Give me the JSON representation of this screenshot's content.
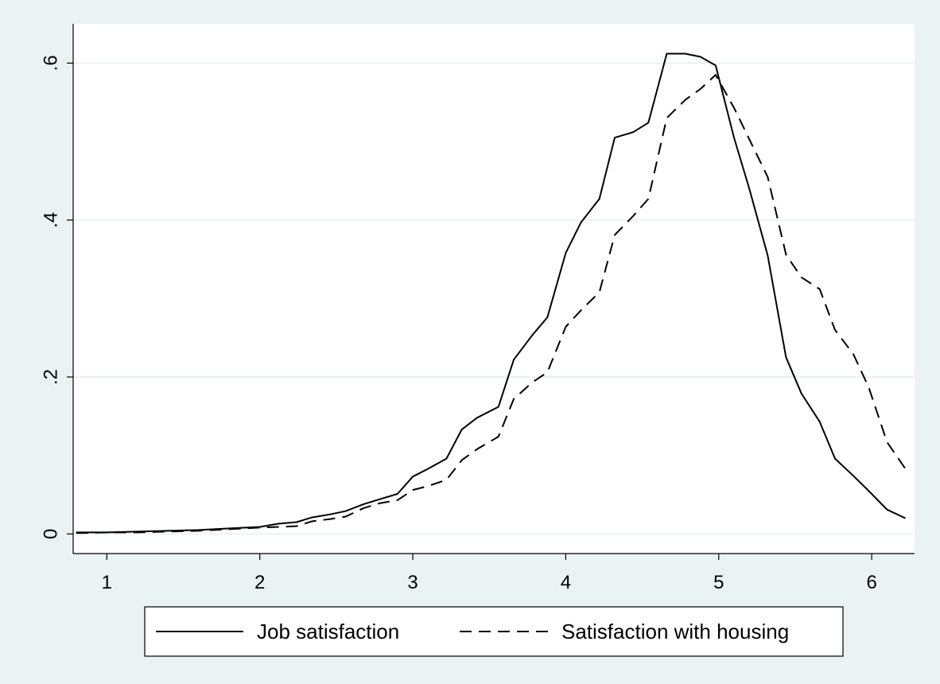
{
  "chart_data": {
    "type": "line",
    "title": "",
    "xlabel": "",
    "ylabel": "",
    "xlim": [
      0.78,
      6.28
    ],
    "ylim": [
      -0.025,
      0.65
    ],
    "x_ticks": [
      1,
      2,
      3,
      4,
      5,
      6
    ],
    "x_tick_labels": [
      "1",
      "2",
      "3",
      "4",
      "5",
      "6"
    ],
    "y_ticks": [
      0,
      0.2,
      0.4,
      0.6
    ],
    "y_tick_labels": [
      "0",
      ".2",
      ".4",
      ".6"
    ],
    "grid": true,
    "legend_position": "bottom",
    "colors": {
      "background": "#eaf2f3",
      "plot_area": "#ffffff",
      "gridline": "#eaf2f3",
      "line": "#000000"
    },
    "series": [
      {
        "name": "Job satisfaction",
        "style": "solid",
        "x": [
          0.8,
          1.0,
          1.2,
          1.4,
          1.6,
          1.8,
          2.0,
          2.12,
          2.24,
          2.34,
          2.46,
          2.56,
          2.68,
          2.78,
          2.9,
          3.0,
          3.1,
          3.22,
          3.32,
          3.42,
          3.56,
          3.66,
          3.78,
          3.88,
          4.0,
          4.1,
          4.22,
          4.32,
          4.44,
          4.54,
          4.66,
          4.78,
          4.88,
          4.98,
          5.1,
          5.2,
          5.32,
          5.44,
          5.54,
          5.66,
          5.76,
          5.88,
          5.98,
          6.1,
          6.22
        ],
        "y": [
          0.002,
          0.002,
          0.003,
          0.004,
          0.005,
          0.007,
          0.009,
          0.013,
          0.015,
          0.021,
          0.025,
          0.029,
          0.038,
          0.044,
          0.051,
          0.073,
          0.083,
          0.096,
          0.133,
          0.148,
          0.162,
          0.222,
          0.253,
          0.276,
          0.358,
          0.397,
          0.427,
          0.505,
          0.512,
          0.524,
          0.612,
          0.612,
          0.608,
          0.597,
          0.505,
          0.44,
          0.355,
          0.225,
          0.179,
          0.143,
          0.096,
          0.074,
          0.055,
          0.031,
          0.02
        ]
      },
      {
        "name": "Satisfaction with housing",
        "style": "dashed",
        "x": [
          0.8,
          1.0,
          1.2,
          1.4,
          1.6,
          1.8,
          2.0,
          2.12,
          2.24,
          2.34,
          2.46,
          2.56,
          2.68,
          2.78,
          2.9,
          3.0,
          3.1,
          3.22,
          3.32,
          3.42,
          3.56,
          3.66,
          3.78,
          3.88,
          4.0,
          4.1,
          4.22,
          4.32,
          4.44,
          4.54,
          4.66,
          4.78,
          4.88,
          4.98,
          5.1,
          5.2,
          5.32,
          5.44,
          5.54,
          5.66,
          5.76,
          5.88,
          5.98,
          6.1,
          6.22
        ],
        "y": [
          0.001,
          0.002,
          0.002,
          0.003,
          0.004,
          0.006,
          0.008,
          0.009,
          0.01,
          0.016,
          0.019,
          0.022,
          0.033,
          0.039,
          0.043,
          0.056,
          0.061,
          0.069,
          0.094,
          0.108,
          0.124,
          0.172,
          0.193,
          0.206,
          0.264,
          0.285,
          0.308,
          0.381,
          0.405,
          0.427,
          0.53,
          0.553,
          0.567,
          0.585,
          0.543,
          0.503,
          0.455,
          0.356,
          0.327,
          0.312,
          0.26,
          0.229,
          0.187,
          0.117,
          0.083
        ]
      }
    ]
  }
}
